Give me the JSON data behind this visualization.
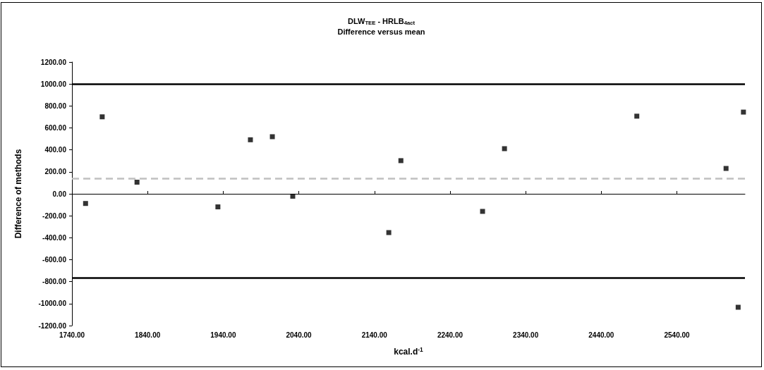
{
  "chart_data": {
    "type": "scatter",
    "title": "DLW$_{TEE}$ - HRLB$_{4act}$",
    "subtitle": "Difference versus mean",
    "xlabel": "kcal.d$^{-1}$",
    "ylabel": "Difference of methods",
    "x": [
      1758,
      1780,
      1826,
      1933,
      1976,
      2005,
      2032,
      2159,
      2175,
      2283,
      2312,
      2487,
      2605,
      2628,
      2621
    ],
    "values": [
      -88,
      701,
      106,
      -119,
      492,
      520,
      -22,
      -353,
      302,
      -160,
      411,
      707,
      231,
      744,
      -1033
    ],
    "color": "#000000",
    "marker": "square",
    "xlim": [
      1740,
      2630
    ],
    "xticks": [
      {
        "value": 1740,
        "label": "1740.00"
      },
      {
        "value": 1840,
        "label": "1840.00"
      },
      {
        "value": 1940,
        "label": "1940.00"
      },
      {
        "value": 2040,
        "label": "2040.00"
      },
      {
        "value": 2140,
        "label": "2140.00"
      },
      {
        "value": 2240,
        "label": "2240.00"
      },
      {
        "value": 2340,
        "label": "2340.00"
      },
      {
        "value": 2440,
        "label": "2440.00"
      },
      {
        "value": 2540,
        "label": "2540.00"
      }
    ],
    "ylim": [
      -1200,
      1200
    ],
    "yticks": [
      {
        "value": -1200,
        "label": "-1200.00"
      },
      {
        "value": -1000,
        "label": "-1000.00"
      },
      {
        "value": -800,
        "label": "-800.00"
      },
      {
        "value": -600,
        "label": "-600.00"
      },
      {
        "value": -400,
        "label": "-400.00"
      },
      {
        "value": -200,
        "label": "-200.00"
      },
      {
        "value": 0,
        "label": "0.00"
      },
      {
        "value": 200,
        "label": "200.00"
      },
      {
        "value": 400,
        "label": "400.00"
      },
      {
        "value": 600,
        "label": "600.00"
      },
      {
        "value": 800,
        "label": "800.00"
      },
      {
        "value": 1000,
        "label": "1000.00"
      },
      {
        "value": 1200,
        "label": "1200.00"
      }
    ],
    "ref_lines": [
      {
        "axis": "y",
        "value": 1000,
        "color": "#000000",
        "line_style": "solid"
      },
      {
        "axis": "y",
        "value": 138,
        "color": "#c0c0c0",
        "line_style": "dashed"
      },
      {
        "axis": "y",
        "value": -763,
        "color": "#000000",
        "line_style": "solid"
      }
    ],
    "grid": false
  }
}
